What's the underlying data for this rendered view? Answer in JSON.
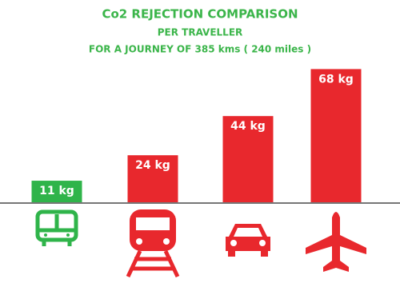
{
  "chart_data": {
    "type": "bar",
    "title": "Co2 REJECTION COMPARISON",
    "subtitle": [
      "PER TRAVELLER",
      "FOR A JOURNEY OF 385 kms ( 240 miles )"
    ],
    "values": [
      11,
      24,
      44,
      68
    ],
    "value_labels": [
      "11 kg",
      "24 kg",
      "44 kg",
      "68 kg"
    ],
    "colors": [
      "#2fb44a",
      "#e8282d",
      "#e8282d",
      "#e8282d"
    ]
  }
}
